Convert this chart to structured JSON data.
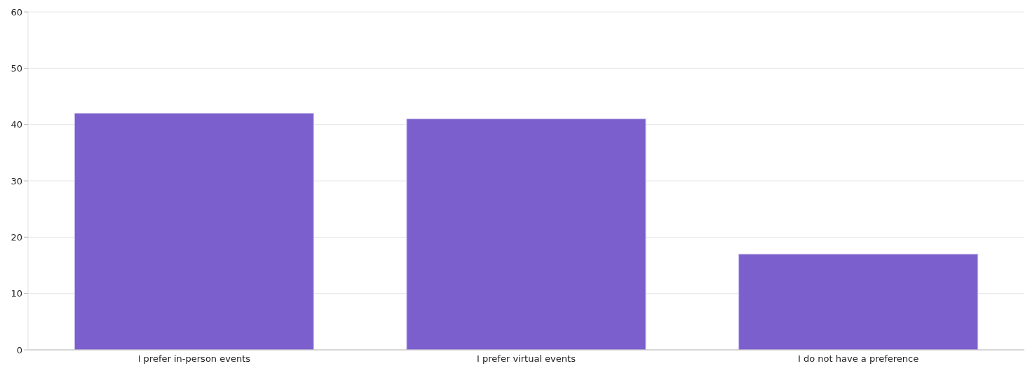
{
  "chart_data": {
    "type": "bar",
    "categories": [
      "I prefer in-person events",
      "I prefer virtual events",
      "I do not have a preference"
    ],
    "values": [
      42,
      41,
      17
    ],
    "color": "#7b5fcc",
    "ylim": [
      0,
      60
    ],
    "yticks": [
      0,
      10,
      20,
      30,
      40,
      50,
      60
    ],
    "grid": "y"
  }
}
